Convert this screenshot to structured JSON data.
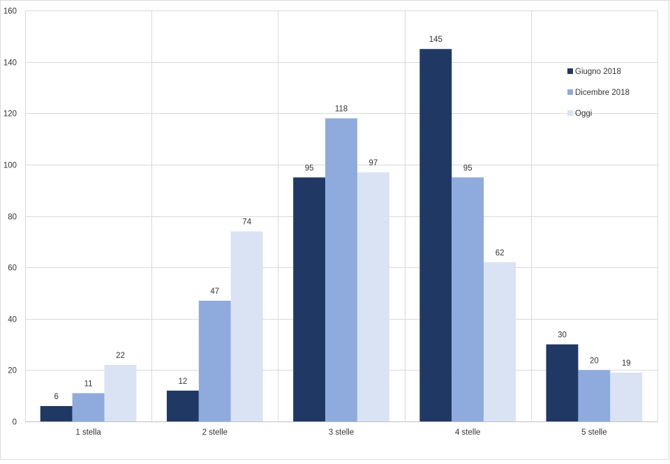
{
  "chart_data": {
    "type": "bar",
    "categories": [
      "1 stella",
      "2 stelle",
      "3 stelle",
      "4 stelle",
      "5 stelle"
    ],
    "series": [
      {
        "name": "Giugno 2018",
        "color": "#203864",
        "values": [
          6,
          12,
          95,
          145,
          30
        ]
      },
      {
        "name": "Dicembre 2018",
        "color": "#8faadc",
        "values": [
          11,
          47,
          118,
          95,
          20
        ]
      },
      {
        "name": "Oggi",
        "color": "#dae3f3",
        "values": [
          22,
          74,
          97,
          62,
          19
        ]
      }
    ],
    "title": "",
    "xlabel": "",
    "ylabel": "",
    "ylim": [
      0,
      160
    ],
    "yticks": [
      0,
      20,
      40,
      60,
      80,
      100,
      120,
      140,
      160
    ],
    "grid": true,
    "legend_position": "top-right",
    "data_labels": true
  }
}
